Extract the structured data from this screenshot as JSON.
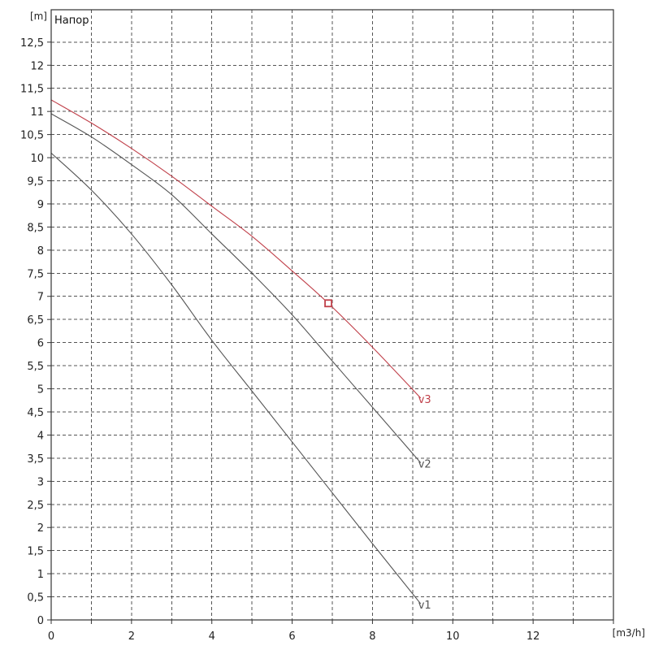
{
  "chart_data": {
    "type": "line",
    "title": "Напор",
    "ylabel": "[m]",
    "xlabel": "[m3/h]",
    "xlim": [
      0,
      14
    ],
    "ylim": [
      0,
      13.2
    ],
    "x_ticks": [
      "0",
      "2",
      "4",
      "6",
      "8",
      "10",
      "12"
    ],
    "y_ticks": [
      "0",
      "0,5",
      "1",
      "1,5",
      "2",
      "2,5",
      "3",
      "3,5",
      "4",
      "4,5",
      "5",
      "5,5",
      "6",
      "6,5",
      "7",
      "7,5",
      "8",
      "8,5",
      "9",
      "9,5",
      "10",
      "10,5",
      "11",
      "11,5",
      "12",
      "12,5"
    ],
    "grid": true,
    "series": [
      {
        "name": "v1",
        "color": "#555555",
        "points": [
          [
            0,
            10.1
          ],
          [
            1,
            9.3
          ],
          [
            2,
            8.35
          ],
          [
            3,
            7.25
          ],
          [
            4,
            6.05
          ],
          [
            5,
            4.95
          ],
          [
            6,
            3.85
          ],
          [
            7,
            2.75
          ],
          [
            8,
            1.65
          ],
          [
            9.2,
            0.35
          ]
        ]
      },
      {
        "name": "v2",
        "color": "#555555",
        "points": [
          [
            0,
            10.95
          ],
          [
            1,
            10.45
          ],
          [
            2,
            9.85
          ],
          [
            3,
            9.2
          ],
          [
            4,
            8.35
          ],
          [
            5,
            7.5
          ],
          [
            6,
            6.6
          ],
          [
            7,
            5.6
          ],
          [
            8,
            4.6
          ],
          [
            9.2,
            3.4
          ]
        ]
      },
      {
        "name": "v3",
        "color": "#c0404a",
        "points": [
          [
            0,
            11.25
          ],
          [
            1,
            10.75
          ],
          [
            2,
            10.2
          ],
          [
            3,
            9.6
          ],
          [
            4,
            8.95
          ],
          [
            5,
            8.3
          ],
          [
            6,
            7.55
          ],
          [
            6.9,
            6.85
          ],
          [
            8,
            5.9
          ],
          [
            9.2,
            4.8
          ]
        ]
      }
    ],
    "marker": {
      "x": 6.9,
      "y": 6.85,
      "color": "#c0404a",
      "series": "v3"
    }
  }
}
